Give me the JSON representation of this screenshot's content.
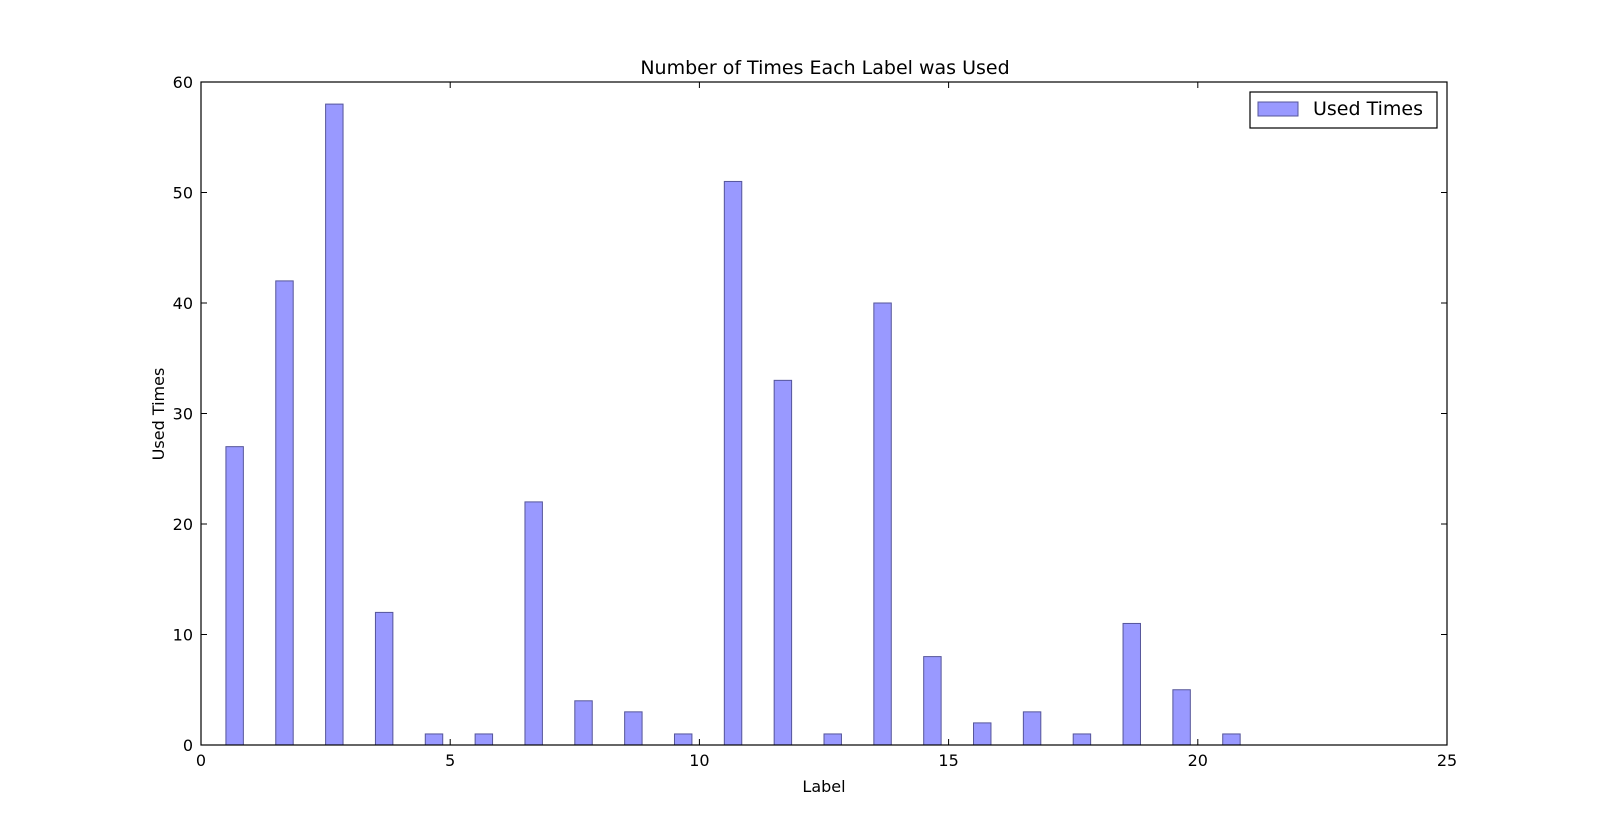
{
  "chart_data": {
    "type": "bar",
    "title": "Number of Times Each Label was Used",
    "xlabel": "Label",
    "ylabel": "Used Times",
    "xlim": [
      0,
      25
    ],
    "ylim": [
      0,
      60
    ],
    "xticks": [
      0,
      5,
      10,
      15,
      20,
      25
    ],
    "yticks": [
      0,
      10,
      20,
      30,
      40,
      50,
      60
    ],
    "grid": false,
    "legend": {
      "position": "top-right",
      "entries": [
        "Used Times"
      ]
    },
    "bar_color": "#9999ff",
    "bar_edge_color": "#55559a",
    "bar_width": 0.35,
    "series": [
      {
        "name": "Used Times",
        "x": [
          0.5,
          1.5,
          2.5,
          3.5,
          4.5,
          5.5,
          6.5,
          7.5,
          8.5,
          9.5,
          10.5,
          11.5,
          12.5,
          13.5,
          14.5,
          15.5,
          16.5,
          17.5,
          18.5,
          19.5,
          20.5
        ],
        "values": [
          27,
          42,
          58,
          12,
          1,
          1,
          22,
          4,
          3,
          1,
          51,
          33,
          1,
          40,
          8,
          2,
          3,
          1,
          11,
          5,
          1
        ]
      }
    ]
  }
}
